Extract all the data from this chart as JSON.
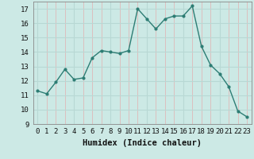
{
  "x": [
    0,
    1,
    2,
    3,
    4,
    5,
    6,
    7,
    8,
    9,
    10,
    11,
    12,
    13,
    14,
    15,
    16,
    17,
    18,
    19,
    20,
    21,
    22,
    23
  ],
  "y": [
    11.3,
    11.1,
    11.9,
    12.8,
    12.1,
    12.2,
    13.6,
    14.1,
    14.0,
    13.9,
    14.1,
    17.0,
    16.3,
    15.6,
    16.3,
    16.5,
    16.5,
    17.2,
    14.4,
    13.1,
    12.5,
    11.6,
    9.9,
    9.5
  ],
  "xlabel": "Humidex (Indice chaleur)",
  "ylim": [
    9,
    17.5
  ],
  "xlim": [
    -0.5,
    23.5
  ],
  "yticks": [
    9,
    10,
    11,
    12,
    13,
    14,
    15,
    16,
    17
  ],
  "xticks": [
    0,
    1,
    2,
    3,
    4,
    5,
    6,
    7,
    8,
    9,
    10,
    11,
    12,
    13,
    14,
    15,
    16,
    17,
    18,
    19,
    20,
    21,
    22,
    23
  ],
  "line_color": "#2d7d74",
  "marker_color": "#2d7d74",
  "bg_color": "#cce9e5",
  "grid_color_major": "#b8d8d4",
  "grid_color_minor": "#deb8b8",
  "xlabel_fontsize": 7.5,
  "tick_fontsize": 6.5
}
